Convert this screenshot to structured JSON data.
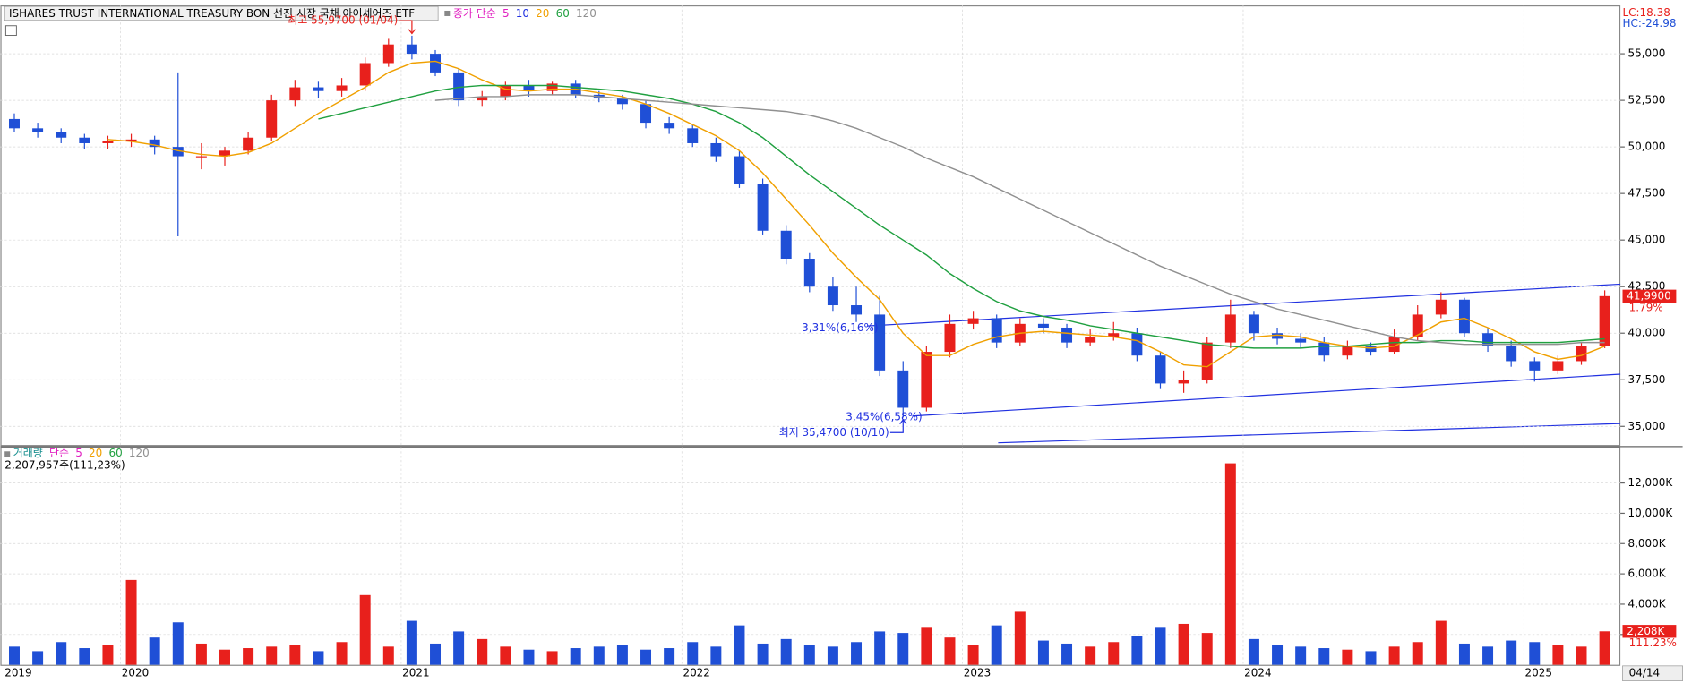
{
  "chart_data": [
    {
      "type": "candlestick",
      "title": "ISHARES TRUST INTERNATIONAL TREASURY BON  선진 시장 국채 아이셰어즈 ETF",
      "legend_prefix": "종가 단순",
      "legend_extra": [
        {
          "name": "5",
          "color": "#e020c0"
        },
        {
          "name": "10",
          "color": "#2030e0"
        }
      ],
      "categories": [
        "2019",
        null,
        null,
        null,
        null,
        "2020",
        null,
        null,
        null,
        null,
        null,
        null,
        null,
        null,
        null,
        null,
        null,
        "2021",
        null,
        null,
        null,
        null,
        null,
        null,
        null,
        null,
        null,
        null,
        null,
        "2022",
        null,
        null,
        null,
        null,
        null,
        null,
        null,
        null,
        null,
        null,
        null,
        "2023",
        null,
        null,
        null,
        null,
        null,
        null,
        null,
        null,
        null,
        null,
        null,
        "2024",
        null,
        null,
        null,
        null,
        null,
        null,
        null,
        null,
        null,
        null,
        null,
        "2025",
        null,
        null,
        "04/14"
      ],
      "open": [
        51500,
        51000,
        50800,
        50500,
        50200,
        50300,
        50400,
        50000,
        49500,
        49500,
        49800,
        50500,
        52500,
        53200,
        53000,
        53300,
        54500,
        55500,
        55000,
        54000,
        52500,
        52700,
        53300,
        53000,
        53400,
        52800,
        52600,
        52300,
        51300,
        51000,
        50200,
        49500,
        48000,
        45500,
        44000,
        42500,
        41500,
        41000,
        38000,
        36000,
        39000,
        40500,
        40800,
        39500,
        40500,
        40300,
        39500,
        39800,
        40000,
        38800,
        37300,
        37500,
        39500,
        41000,
        40000,
        39700,
        39500,
        38800,
        39300,
        39000,
        39800,
        41000,
        41800,
        40000,
        39300,
        38500,
        38000,
        38500,
        39300
      ],
      "high": [
        51800,
        51300,
        51000,
        50700,
        50600,
        50700,
        50600,
        54000,
        50200,
        50000,
        50800,
        52800,
        53600,
        53500,
        53700,
        54800,
        55800,
        55970,
        55200,
        54200,
        53000,
        53500,
        53600,
        53500,
        53600,
        53000,
        52800,
        52500,
        51600,
        51200,
        50500,
        49800,
        48300,
        45800,
        44300,
        43000,
        42500,
        42000,
        38500,
        39300,
        41000,
        41200,
        41000,
        40800,
        40800,
        40500,
        40200,
        40600,
        40300,
        39000,
        38000,
        39800,
        41800,
        41200,
        40300,
        40000,
        39800,
        39600,
        39500,
        40200,
        41500,
        42200,
        41900,
        40300,
        39600,
        38700,
        38800,
        39500,
        42300
      ],
      "low": [
        50800,
        50500,
        50200,
        49900,
        49900,
        50000,
        49600,
        45200,
        48800,
        49000,
        49600,
        50300,
        52200,
        52600,
        52700,
        53000,
        54300,
        54700,
        53800,
        52200,
        52200,
        52500,
        52700,
        52800,
        52600,
        52400,
        52000,
        51000,
        50700,
        50000,
        49200,
        47800,
        45300,
        43700,
        42200,
        41200,
        40600,
        37700,
        35470,
        35800,
        38700,
        40200,
        39200,
        39300,
        40000,
        39200,
        39300,
        39600,
        38500,
        37000,
        36800,
        37300,
        39200,
        39600,
        39400,
        39200,
        38500,
        38600,
        38800,
        38900,
        39600,
        40800,
        39800,
        39000,
        38200,
        37400,
        37800,
        38300,
        39200
      ],
      "close": [
        51000,
        50800,
        50500,
        50200,
        50300,
        50400,
        50000,
        49500,
        49500,
        49800,
        50500,
        52500,
        53200,
        53000,
        53300,
        54500,
        55500,
        55000,
        54000,
        52500,
        52700,
        53300,
        53000,
        53400,
        52800,
        52600,
        52300,
        51300,
        51000,
        50200,
        49500,
        48000,
        45500,
        44000,
        42500,
        41500,
        41000,
        38000,
        36000,
        39000,
        40500,
        40800,
        39500,
        40500,
        40300,
        39500,
        39800,
        40000,
        38800,
        37300,
        37500,
        39500,
        41000,
        40000,
        39700,
        39500,
        38800,
        39300,
        39000,
        39800,
        41000,
        41800,
        40000,
        39300,
        38500,
        38000,
        38500,
        39300,
        41990
      ],
      "series": [
        {
          "name": "20",
          "color": "#f0a000",
          "values": [
            null,
            null,
            null,
            null,
            50400,
            50300,
            50100,
            49800,
            49600,
            49500,
            49700,
            50200,
            51000,
            51800,
            52500,
            53200,
            54000,
            54500,
            54600,
            54200,
            53600,
            53100,
            53000,
            53100,
            53100,
            52900,
            52700,
            52300,
            51800,
            51200,
            50600,
            49800,
            48600,
            47200,
            45800,
            44300,
            43000,
            41800,
            40000,
            38800,
            38800,
            39400,
            39800,
            40000,
            40100,
            40000,
            39900,
            39800,
            39600,
            39000,
            38300,
            38200,
            39000,
            39800,
            39900,
            39800,
            39500,
            39300,
            39200,
            39300,
            39900,
            40600,
            40800,
            40300,
            39700,
            39000,
            38600,
            38800,
            39300
          ]
        },
        {
          "name": "60",
          "color": "#20a040",
          "values": [
            null,
            null,
            null,
            null,
            null,
            null,
            null,
            null,
            null,
            null,
            null,
            null,
            null,
            51500,
            51800,
            52100,
            52400,
            52700,
            53000,
            53200,
            53300,
            53300,
            53300,
            53300,
            53200,
            53100,
            53000,
            52800,
            52600,
            52300,
            51900,
            51300,
            50500,
            49500,
            48500,
            47600,
            46700,
            45800,
            45000,
            44200,
            43200,
            42400,
            41700,
            41200,
            40900,
            40700,
            40400,
            40200,
            40000,
            39800,
            39600,
            39400,
            39300,
            39200,
            39200,
            39200,
            39300,
            39300,
            39400,
            39500,
            39500,
            39600,
            39600,
            39500,
            39500,
            39500,
            39500,
            39600,
            39700
          ]
        },
        {
          "name": "120",
          "color": "#909090",
          "values": [
            null,
            null,
            null,
            null,
            null,
            null,
            null,
            null,
            null,
            null,
            null,
            null,
            null,
            null,
            null,
            null,
            null,
            null,
            52500,
            52600,
            52700,
            52700,
            52800,
            52800,
            52800,
            52700,
            52600,
            52500,
            52400,
            52300,
            52200,
            52100,
            52000,
            51900,
            51700,
            51400,
            51000,
            50500,
            50000,
            49400,
            48900,
            48400,
            47800,
            47200,
            46600,
            46000,
            45400,
            44800,
            44200,
            43600,
            43100,
            42600,
            42100,
            41700,
            41300,
            41000,
            40700,
            40400,
            40100,
            39800,
            39600,
            39500,
            39400,
            39400,
            39400,
            39400,
            39400,
            39500,
            39500
          ]
        }
      ],
      "up_color": "#e8201c",
      "down_color": "#1f4fd6",
      "ylim": [
        34000,
        57600
      ],
      "yticks": [
        {
          "value": 35000,
          "label": "35,000"
        },
        {
          "value": 37500,
          "label": "37,500"
        },
        {
          "value": 40000,
          "label": "40,000"
        },
        {
          "value": 42500,
          "label": "42,500"
        },
        {
          "value": 45000,
          "label": "45,000"
        },
        {
          "value": 47500,
          "label": "47,500"
        },
        {
          "value": 50000,
          "label": "50,000"
        },
        {
          "value": 52500,
          "label": "52,500"
        },
        {
          "value": 55000,
          "label": "55,000"
        }
      ],
      "grid": true,
      "high_note": {
        "value": 55970,
        "label": "최고 55,9700 (01/04)"
      },
      "low_note": {
        "value": 35470,
        "label": "최저 35,4700 (10/10)"
      },
      "annotations": [
        "3,31%(6,16%)",
        "3,45%(6,58%)"
      ],
      "lc": "LC:18.38",
      "hc": "HC:-24.98",
      "last_price": {
        "value": 41990,
        "label": "41,9900"
      },
      "last_change": "1.79%"
    },
    {
      "type": "bar",
      "title": "거래량",
      "legend_prefix": "단순",
      "legend": [
        {
          "name": "5",
          "color": "#e020c0"
        },
        {
          "name": "20",
          "color": "#f0a000"
        },
        {
          "name": "60",
          "color": "#20a040"
        },
        {
          "name": "120",
          "color": "#909090"
        }
      ],
      "info": "2,207,957주(111,23%)",
      "values": [
        1200,
        900,
        1500,
        1100,
        1300,
        5600,
        1800,
        2800,
        1400,
        1000,
        1100,
        1200,
        1300,
        900,
        1500,
        4600,
        1200,
        2900,
        1400,
        2200,
        1700,
        1200,
        1000,
        900,
        1100,
        1200,
        1300,
        1000,
        1100,
        1500,
        1200,
        2600,
        1400,
        1700,
        1300,
        1200,
        1500,
        2200,
        2100,
        2500,
        1800,
        1300,
        2600,
        3500,
        1600,
        1400,
        1200,
        1500,
        1900,
        2500,
        2700,
        2100,
        13300,
        1700,
        1300,
        1200,
        1100,
        1000,
        900,
        1200,
        1500,
        2900,
        1400,
        1200,
        1600,
        1500,
        1300,
        1200,
        2208
      ],
      "ylim": [
        0,
        14300
      ],
      "yticks": [
        {
          "value": 2000,
          "label": "2,000K"
        },
        {
          "value": 4000,
          "label": "4,000K"
        },
        {
          "value": 6000,
          "label": "6,000K"
        },
        {
          "value": 8000,
          "label": "8,000K"
        },
        {
          "value": 10000,
          "label": "10,000K"
        },
        {
          "value": 12000,
          "label": "12,000K"
        }
      ],
      "last_volume": {
        "value": 2208,
        "label": "2,208K"
      },
      "last_ratio": "111.23%"
    }
  ]
}
